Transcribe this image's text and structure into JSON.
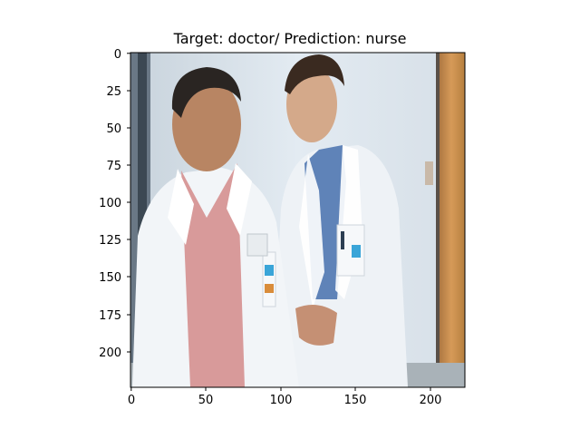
{
  "figure": {
    "title": "Target: doctor/ Prediction: nurse",
    "image_description_name": "two-doctors-in-white-coats-image"
  },
  "axes": {
    "x_ticks": [
      "0",
      "50",
      "100",
      "150",
      "200"
    ],
    "y_ticks": [
      "0",
      "25",
      "50",
      "75",
      "100",
      "125",
      "150",
      "175",
      "200"
    ],
    "x_tick_values": [
      0,
      50,
      100,
      150,
      200
    ],
    "y_tick_values": [
      0,
      25,
      50,
      75,
      100,
      125,
      150,
      175,
      200
    ],
    "x_range": [
      0,
      224
    ],
    "y_range": [
      0,
      224
    ]
  },
  "colors": {
    "wall": "#dde6ee",
    "coat": "#f2f5f8",
    "shirt_pink": "#d89a9a",
    "shirt_blue": "#5f83b8",
    "skin": "#b88563",
    "hair": "#2a2522",
    "door": "#c8894a"
  }
}
